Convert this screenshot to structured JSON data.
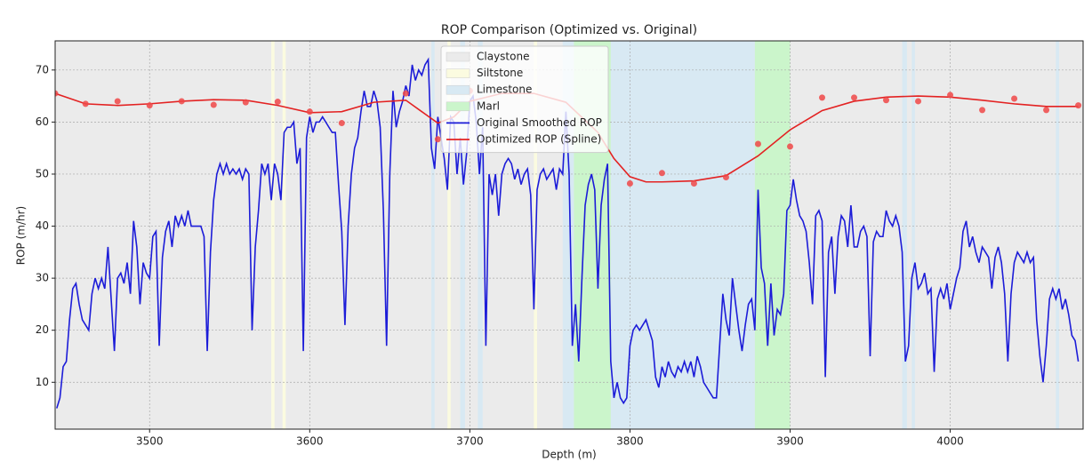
{
  "chart_data": {
    "type": "line",
    "title": "ROP Comparison (Optimized vs. Original)",
    "x_label": "Depth (m)",
    "y_label": "ROP (m/hr)",
    "xlim": [
      3441,
      4083
    ],
    "ylim": [
      1,
      75.6
    ],
    "xticks": [
      3500,
      3600,
      3700,
      3800,
      3900,
      4000
    ],
    "yticks": [
      10,
      20,
      30,
      40,
      50,
      60,
      70
    ],
    "grid": true,
    "legend": "upper center",
    "spans": [
      {
        "name": "Claystone",
        "color": "#ebebeb",
        "ranges": [
          [
            3441,
            4083
          ]
        ]
      },
      {
        "name": "Siltstone",
        "color": "#fbfbe0",
        "ranges": [
          [
            3576,
            3578
          ],
          [
            3583,
            3585
          ],
          [
            3686,
            3688
          ],
          [
            3740,
            3742
          ]
        ]
      },
      {
        "name": "Limestone",
        "color": "#d8e9f3",
        "ranges": [
          [
            3676,
            3678
          ],
          [
            3694,
            3697
          ],
          [
            3705,
            3708
          ],
          [
            3758,
            3765
          ],
          [
            3788,
            3878
          ],
          [
            3970,
            3973
          ],
          [
            3976,
            3978
          ],
          [
            4066,
            4068
          ]
        ]
      },
      {
        "name": "Marl",
        "color": "#cbf5cb",
        "ranges": [
          [
            3765,
            3788
          ],
          [
            3878,
            3900
          ]
        ]
      }
    ],
    "series": [
      {
        "name": "Original Smoothed ROP",
        "color": "#1c1cd8",
        "x": [
          3442,
          3444,
          3446,
          3448,
          3450,
          3452,
          3454,
          3456,
          3458,
          3460,
          3462,
          3464,
          3466,
          3468,
          3470,
          3472,
          3474,
          3476,
          3478,
          3480,
          3482,
          3484,
          3486,
          3488,
          3490,
          3492,
          3494,
          3496,
          3498,
          3500,
          3502,
          3504,
          3506,
          3508,
          3510,
          3512,
          3514,
          3516,
          3518,
          3520,
          3522,
          3524,
          3526,
          3528,
          3530,
          3532,
          3534,
          3536,
          3538,
          3540,
          3542,
          3544,
          3546,
          3548,
          3550,
          3552,
          3554,
          3556,
          3558,
          3560,
          3562,
          3564,
          3566,
          3568,
          3570,
          3572,
          3574,
          3576,
          3578,
          3580,
          3582,
          3584,
          3586,
          3588,
          3590,
          3592,
          3594,
          3596,
          3598,
          3600,
          3602,
          3604,
          3606,
          3608,
          3610,
          3612,
          3614,
          3616,
          3618,
          3620,
          3622,
          3624,
          3626,
          3628,
          3630,
          3632,
          3634,
          3636,
          3638,
          3640,
          3642,
          3644,
          3646,
          3648,
          3650,
          3652,
          3654,
          3656,
          3658,
          3660,
          3662,
          3664,
          3666,
          3668,
          3670,
          3672,
          3674,
          3676,
          3678,
          3680,
          3682,
          3684,
          3686,
          3688,
          3690,
          3692,
          3694,
          3696,
          3698,
          3700,
          3702,
          3704,
          3706,
          3708,
          3710,
          3712,
          3714,
          3716,
          3718,
          3720,
          3722,
          3724,
          3726,
          3728,
          3730,
          3732,
          3734,
          3736,
          3738,
          3740,
          3742,
          3744,
          3746,
          3748,
          3750,
          3752,
          3754,
          3756,
          3758,
          3760,
          3762,
          3764,
          3766,
          3768,
          3770,
          3772,
          3774,
          3776,
          3778,
          3780,
          3782,
          3784,
          3786,
          3788,
          3790,
          3792,
          3794,
          3796,
          3798,
          3800,
          3802,
          3804,
          3806,
          3808,
          3810,
          3812,
          3814,
          3816,
          3818,
          3820,
          3822,
          3824,
          3826,
          3828,
          3830,
          3832,
          3834,
          3836,
          3838,
          3840,
          3842,
          3844,
          3846,
          3848,
          3850,
          3852,
          3854,
          3856,
          3858,
          3860,
          3862,
          3864,
          3866,
          3868,
          3870,
          3872,
          3874,
          3876,
          3878,
          3880,
          3882,
          3884,
          3886,
          3888,
          3890,
          3892,
          3894,
          3896,
          3898,
          3900,
          3902,
          3904,
          3906,
          3908,
          3910,
          3912,
          3914,
          3916,
          3918,
          3920,
          3922,
          3924,
          3926,
          3928,
          3930,
          3932,
          3934,
          3936,
          3938,
          3940,
          3942,
          3944,
          3946,
          3948,
          3950,
          3952,
          3954,
          3956,
          3958,
          3960,
          3962,
          3964,
          3966,
          3968,
          3970,
          3972,
          3974,
          3976,
          3978,
          3980,
          3982,
          3984,
          3986,
          3988,
          3990,
          3992,
          3994,
          3996,
          3998,
          4000,
          4002,
          4004,
          4006,
          4008,
          4010,
          4012,
          4014,
          4016,
          4018,
          4020,
          4022,
          4024,
          4026,
          4028,
          4030,
          4032,
          4034,
          4036,
          4038,
          4040,
          4042,
          4044,
          4046,
          4048,
          4050,
          4052,
          4054,
          4056,
          4058,
          4060,
          4062,
          4064,
          4066,
          4068,
          4070,
          4072,
          4074,
          4076,
          4078,
          4080
        ],
        "values": [
          5,
          7,
          13,
          14,
          22,
          28,
          29,
          25,
          22,
          21,
          20,
          27,
          30,
          28,
          30,
          28,
          36,
          26,
          16,
          30,
          31,
          29,
          33,
          27,
          41,
          36,
          25,
          33,
          31,
          30,
          38,
          39,
          17,
          34,
          39,
          41,
          36,
          42,
          40,
          42,
          40,
          43,
          40,
          40,
          40,
          40,
          38,
          16,
          35,
          45,
          50,
          52,
          50,
          52,
          50,
          51,
          50,
          51,
          49,
          51,
          50,
          20,
          36,
          43,
          52,
          50,
          52,
          45,
          52,
          50,
          45,
          58,
          59,
          59,
          60,
          52,
          55,
          16,
          57,
          61,
          58,
          60,
          60,
          61,
          60,
          59,
          58,
          58,
          48,
          39,
          21,
          40,
          50,
          55,
          57,
          62,
          66,
          63,
          63,
          66,
          64,
          59,
          43,
          17,
          50,
          66,
          59,
          62,
          64,
          67,
          65,
          71,
          68,
          70,
          69,
          71,
          72,
          55,
          51,
          61,
          57,
          53,
          47,
          61,
          60,
          50,
          57,
          48,
          54,
          64,
          65,
          60,
          50,
          59,
          17,
          50,
          46,
          50,
          42,
          50,
          52,
          53,
          52,
          49,
          51,
          48,
          50,
          51,
          46,
          24,
          47,
          50,
          51,
          49,
          50,
          51,
          47,
          51,
          50,
          62,
          50,
          17,
          25,
          14,
          30,
          44,
          48,
          50,
          47,
          28,
          44,
          49,
          52,
          14,
          7,
          10,
          7,
          6,
          7,
          17,
          20,
          21,
          20,
          21,
          22,
          20,
          18,
          11,
          9,
          13,
          11,
          14,
          12,
          11,
          13,
          12,
          14,
          12,
          14,
          11,
          15,
          13,
          10,
          9,
          8,
          7,
          7,
          17,
          27,
          22,
          19,
          30,
          25,
          20,
          16,
          21,
          25,
          26,
          20,
          47,
          32,
          29,
          17,
          29,
          19,
          24,
          23,
          27,
          43,
          44,
          49,
          45,
          42,
          41,
          39,
          33,
          25,
          42,
          43,
          41,
          11,
          35,
          38,
          27,
          38,
          42,
          41,
          36,
          44,
          36,
          36,
          39,
          40,
          38,
          15,
          37,
          39,
          38,
          38,
          43,
          41,
          40,
          42,
          40,
          35,
          14,
          17,
          30,
          33,
          28,
          29,
          31,
          27,
          28,
          12,
          26,
          28,
          26,
          29,
          24,
          27,
          30,
          32,
          39,
          41,
          36,
          38,
          35,
          33,
          36,
          35,
          34,
          28,
          34,
          36,
          33,
          27,
          14,
          27,
          33,
          35,
          34,
          33,
          35,
          33,
          34,
          22,
          15,
          10,
          17,
          26,
          28,
          26,
          28,
          24,
          26,
          23,
          19,
          18,
          14
        ]
      },
      {
        "name": "Optimized ROP (Spline)",
        "color": "#e32222",
        "x": [
          3441,
          3460,
          3480,
          3500,
          3520,
          3540,
          3560,
          3580,
          3600,
          3620,
          3640,
          3660,
          3670,
          3680,
          3690,
          3700,
          3720,
          3740,
          3760,
          3780,
          3790,
          3800,
          3810,
          3820,
          3840,
          3860,
          3880,
          3900,
          3920,
          3940,
          3960,
          3980,
          4000,
          4020,
          4040,
          4060,
          4080
        ],
        "values": [
          65.5,
          63.5,
          63.2,
          63.5,
          64,
          64.3,
          64.2,
          63.2,
          61.8,
          62,
          63.8,
          64.2,
          62,
          59.8,
          61,
          64,
          65.5,
          65.5,
          63.8,
          58,
          53,
          49.5,
          48.5,
          48.5,
          48.7,
          49.7,
          53.5,
          58.5,
          62.2,
          64,
          64.8,
          65,
          64.8,
          64.2,
          63.5,
          63,
          63
        ]
      }
    ],
    "points": {
      "color": "#f04848",
      "x": [
        3441,
        3460,
        3480,
        3500,
        3520,
        3540,
        3560,
        3580,
        3600,
        3620,
        3660,
        3680,
        3700,
        3800,
        3820,
        3840,
        3860,
        3880,
        3900,
        3920,
        3940,
        3960,
        3980,
        4000,
        4020,
        4040,
        4060,
        4080
      ],
      "values": [
        65.5,
        63.5,
        64,
        63.2,
        64,
        63.3,
        63.8,
        63.9,
        62,
        59.8,
        65.5,
        56.7,
        66,
        48.2,
        50.2,
        48.2,
        49.4,
        55.8,
        55.3,
        64.7,
        64.7,
        64.2,
        64,
        65.2,
        62.3,
        64.5,
        62.3,
        63.2
      ]
    }
  }
}
